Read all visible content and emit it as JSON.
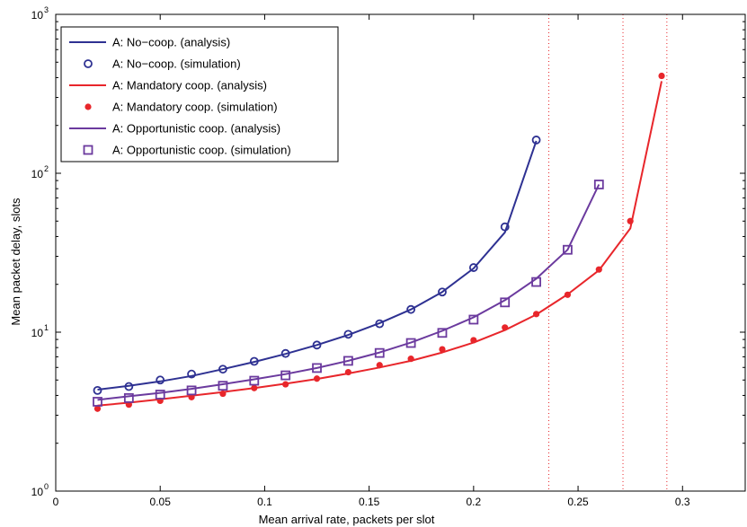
{
  "chart_data": {
    "type": "line",
    "title": "",
    "xlabel": "Mean arrival rate, packets per slot",
    "ylabel": "Mean packet delay, slots",
    "xlim": [
      0,
      0.33
    ],
    "ylim": [
      1,
      1000
    ],
    "yscale": "log",
    "grid": false,
    "legend_position": "top-left",
    "x_ticks": [
      {
        "value": 0,
        "label": "0"
      },
      {
        "value": 0.05,
        "label": "0.05"
      },
      {
        "value": 0.1,
        "label": "0.1"
      },
      {
        "value": 0.15,
        "label": "0.15"
      },
      {
        "value": 0.2,
        "label": "0.2"
      },
      {
        "value": 0.25,
        "label": "0.25"
      },
      {
        "value": 0.3,
        "label": "0.3"
      }
    ],
    "y_ticks": [
      {
        "value": 1,
        "base": "10",
        "exp": "0"
      },
      {
        "value": 10,
        "base": "10",
        "exp": "1"
      },
      {
        "value": 100,
        "base": "10",
        "exp": "2"
      },
      {
        "value": 1000,
        "base": "10",
        "exp": "3"
      }
    ],
    "vlines": [
      0.236,
      0.2715,
      0.2925
    ],
    "series": [
      {
        "name": "A: No−coop. (analysis)",
        "kind": "line",
        "color": "#2e3192",
        "x": [
          0.02,
          0.035,
          0.05,
          0.065,
          0.08,
          0.095,
          0.11,
          0.125,
          0.14,
          0.155,
          0.17,
          0.185,
          0.2,
          0.215,
          0.23
        ],
        "y": [
          4.35,
          4.6,
          4.9,
          5.3,
          5.85,
          6.5,
          7.3,
          8.3,
          9.6,
          11.4,
          13.9,
          17.9,
          25.2,
          42.5,
          160
        ]
      },
      {
        "name": "A: No−coop. (simulation)",
        "kind": "circle",
        "color": "#2e3192",
        "x": [
          0.02,
          0.035,
          0.05,
          0.065,
          0.08,
          0.095,
          0.11,
          0.125,
          0.14,
          0.155,
          0.17,
          0.185,
          0.2,
          0.215,
          0.23
        ],
        "y": [
          4.3,
          4.55,
          5.0,
          5.45,
          5.85,
          6.55,
          7.35,
          8.3,
          9.7,
          11.3,
          13.9,
          17.9,
          25.5,
          46,
          162
        ]
      },
      {
        "name": "A: Mandatory coop. (analysis)",
        "kind": "line",
        "color": "#e8262b",
        "x": [
          0.02,
          0.035,
          0.05,
          0.065,
          0.08,
          0.095,
          0.11,
          0.125,
          0.14,
          0.155,
          0.17,
          0.185,
          0.2,
          0.215,
          0.23,
          0.245,
          0.26,
          0.275,
          0.29
        ],
        "y": [
          3.45,
          3.6,
          3.78,
          3.98,
          4.2,
          4.45,
          4.74,
          5.08,
          5.5,
          6.0,
          6.6,
          7.45,
          8.6,
          10.3,
          12.9,
          17.3,
          24.5,
          45,
          380
        ]
      },
      {
        "name": "A: Mandatory coop. (simulation)",
        "kind": "dot",
        "color": "#e8262b",
        "x": [
          0.02,
          0.035,
          0.05,
          0.065,
          0.08,
          0.095,
          0.11,
          0.125,
          0.14,
          0.155,
          0.17,
          0.185,
          0.2,
          0.215,
          0.23,
          0.245,
          0.26,
          0.275,
          0.29
        ],
        "y": [
          3.3,
          3.5,
          3.7,
          3.9,
          4.1,
          4.45,
          4.7,
          5.1,
          5.6,
          6.2,
          6.8,
          7.8,
          8.9,
          10.7,
          13.0,
          17.2,
          24.8,
          50,
          410
        ]
      },
      {
        "name": "A: Opportunistic coop. (analysis)",
        "kind": "line",
        "color": "#6b3a9e",
        "x": [
          0.02,
          0.035,
          0.05,
          0.065,
          0.08,
          0.095,
          0.11,
          0.125,
          0.14,
          0.155,
          0.17,
          0.185,
          0.2,
          0.215,
          0.23,
          0.245,
          0.26
        ],
        "y": [
          3.75,
          3.95,
          4.15,
          4.4,
          4.7,
          5.05,
          5.45,
          5.95,
          6.6,
          7.45,
          8.6,
          10.2,
          12.4,
          15.9,
          21.7,
          33,
          85
        ]
      },
      {
        "name": "A: Opportunistic coop. (simulation)",
        "kind": "square",
        "color": "#6b3a9e",
        "x": [
          0.02,
          0.035,
          0.05,
          0.065,
          0.08,
          0.095,
          0.11,
          0.125,
          0.14,
          0.155,
          0.17,
          0.185,
          0.2,
          0.215,
          0.23,
          0.245,
          0.26
        ],
        "y": [
          3.65,
          3.85,
          4.05,
          4.3,
          4.6,
          4.95,
          5.35,
          5.95,
          6.6,
          7.4,
          8.55,
          9.9,
          12.0,
          15.4,
          20.7,
          33,
          85
        ]
      }
    ]
  }
}
